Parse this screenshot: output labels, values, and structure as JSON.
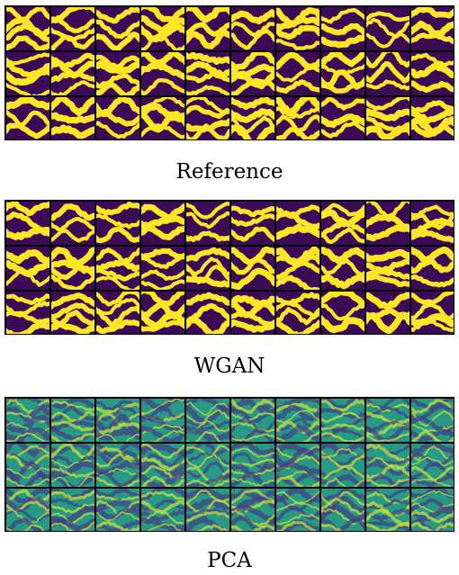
{
  "panels": [
    {
      "caption": "Reference",
      "style": "binary",
      "colors": {
        "background": "#3b0b57",
        "foreground": "#fde725"
      },
      "rows": 3,
      "cols": 10
    },
    {
      "caption": "WGAN",
      "style": "binary",
      "colors": {
        "background": "#3b0b57",
        "foreground": "#fde725"
      },
      "rows": 3,
      "cols": 10
    },
    {
      "caption": "PCA",
      "style": "continuous",
      "colors": {
        "low": "#433d84",
        "mid": "#2a8f8c",
        "high": "#c7e03a",
        "background": "#279a86"
      },
      "rows": 3,
      "cols": 10
    }
  ]
}
